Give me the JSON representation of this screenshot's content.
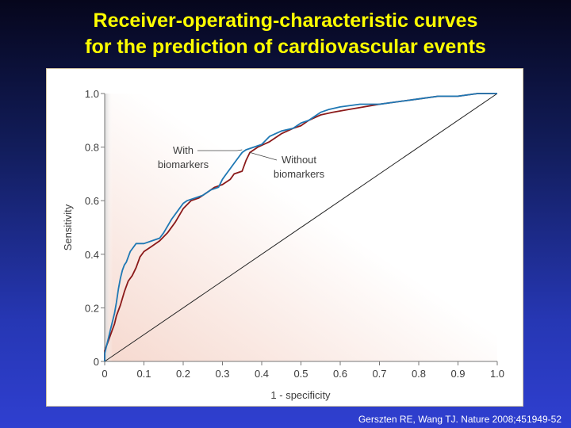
{
  "slide": {
    "title_line1": "Receiver-operating-characteristic curves",
    "title_line2": "for the prediction of cardiovascular events",
    "citation": "Gerszten RE, Wang TJ. Nature 2008;451949-52"
  },
  "colors": {
    "with_biomarkers": "#1f78b4",
    "without_biomarkers": "#8b1a1a",
    "reference_line": "#222222",
    "title": "#ffff00"
  },
  "chart_data": {
    "type": "line",
    "title": "",
    "xlabel": "1 - specificity",
    "ylabel": "Sensitivity",
    "xlim": [
      0,
      1
    ],
    "ylim": [
      0,
      1
    ],
    "xticks": [
      "0",
      "0.1",
      "0.2",
      "0.3",
      "0.4",
      "0.5",
      "0.6",
      "0.7",
      "0.8",
      "0.9",
      "1.0"
    ],
    "yticks": [
      "0",
      "0.2",
      "0.4",
      "0.6",
      "0.8",
      "1.0"
    ],
    "grid": false,
    "series": [
      {
        "name": "With\nbiomarkers",
        "color": "#1f78b4",
        "x": [
          0,
          0,
          0.005,
          0.01,
          0.015,
          0.02,
          0.025,
          0.03,
          0.035,
          0.04,
          0.045,
          0.05,
          0.055,
          0.06,
          0.065,
          0.07,
          0.08,
          0.09,
          0.1,
          0.12,
          0.14,
          0.15,
          0.17,
          0.19,
          0.2,
          0.21,
          0.23,
          0.25,
          0.27,
          0.29,
          0.3,
          0.31,
          0.32,
          0.33,
          0.34,
          0.35,
          0.36,
          0.38,
          0.4,
          0.42,
          0.45,
          0.48,
          0.5,
          0.52,
          0.55,
          0.57,
          0.6,
          0.65,
          0.7,
          0.75,
          0.8,
          0.85,
          0.9,
          0.95,
          0.98,
          1.0
        ],
        "y": [
          0,
          0.03,
          0.06,
          0.09,
          0.12,
          0.15,
          0.18,
          0.22,
          0.27,
          0.31,
          0.34,
          0.36,
          0.37,
          0.39,
          0.41,
          0.42,
          0.44,
          0.44,
          0.44,
          0.45,
          0.46,
          0.48,
          0.53,
          0.57,
          0.59,
          0.6,
          0.61,
          0.62,
          0.64,
          0.65,
          0.68,
          0.7,
          0.72,
          0.74,
          0.76,
          0.78,
          0.79,
          0.8,
          0.81,
          0.84,
          0.86,
          0.87,
          0.89,
          0.9,
          0.93,
          0.94,
          0.95,
          0.96,
          0.96,
          0.97,
          0.98,
          0.99,
          0.99,
          1.0,
          1.0,
          1.0
        ]
      },
      {
        "name": "Without\nbiomarkers",
        "color": "#8b1a1a",
        "x": [
          0,
          0,
          0.01,
          0.02,
          0.025,
          0.03,
          0.04,
          0.05,
          0.06,
          0.07,
          0.08,
          0.09,
          0.1,
          0.12,
          0.14,
          0.16,
          0.18,
          0.2,
          0.22,
          0.24,
          0.26,
          0.28,
          0.3,
          0.32,
          0.33,
          0.35,
          0.36,
          0.37,
          0.39,
          0.42,
          0.45,
          0.48,
          0.5,
          0.52,
          0.55,
          0.58,
          0.62,
          0.66,
          0.7,
          0.75,
          0.8,
          0.85,
          0.9,
          0.95,
          0.98,
          1.0
        ],
        "y": [
          0,
          0.04,
          0.08,
          0.12,
          0.14,
          0.17,
          0.21,
          0.26,
          0.3,
          0.32,
          0.35,
          0.39,
          0.41,
          0.43,
          0.45,
          0.48,
          0.52,
          0.57,
          0.6,
          0.61,
          0.63,
          0.65,
          0.66,
          0.68,
          0.7,
          0.71,
          0.75,
          0.78,
          0.8,
          0.82,
          0.85,
          0.87,
          0.88,
          0.9,
          0.92,
          0.93,
          0.94,
          0.95,
          0.96,
          0.97,
          0.98,
          0.99,
          0.99,
          1.0,
          1.0,
          1.0
        ]
      },
      {
        "name": "",
        "color": "#222222",
        "x": [
          0,
          1
        ],
        "y": [
          0,
          1
        ]
      }
    ],
    "annotations": [
      {
        "text_lines": [
          "With",
          "biomarkers"
        ],
        "points_to": "With\nbiomarkers",
        "at": [
          0.35,
          0.79
        ]
      },
      {
        "text_lines": [
          "Without",
          "biomarkers"
        ],
        "points_to": "Without\nbiomarkers",
        "at": [
          0.37,
          0.78
        ]
      }
    ]
  }
}
